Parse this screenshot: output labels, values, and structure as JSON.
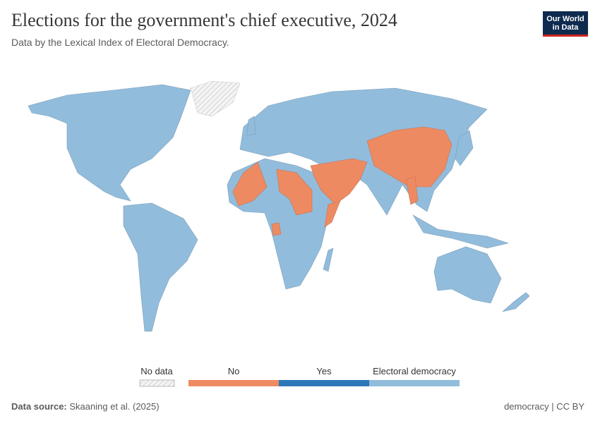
{
  "header": {
    "title": "Elections for the government's chief executive, 2024",
    "subtitle": "Data by the Lexical Index of Electoral Democracy.",
    "logo": [
      "Our World",
      "in Data"
    ]
  },
  "legend": {
    "items": [
      {
        "label": "No data",
        "color": "#e8e8e8"
      },
      {
        "label": "No",
        "color": "#ee8a62"
      },
      {
        "label": "Yes",
        "color": "#2e77b8"
      },
      {
        "label": "Electoral democracy",
        "color": "#92bcdb"
      }
    ]
  },
  "footer": {
    "source_label": "Data source:",
    "source": "Skaaning et al. (2025)",
    "license": "democracy | CC BY"
  }
}
